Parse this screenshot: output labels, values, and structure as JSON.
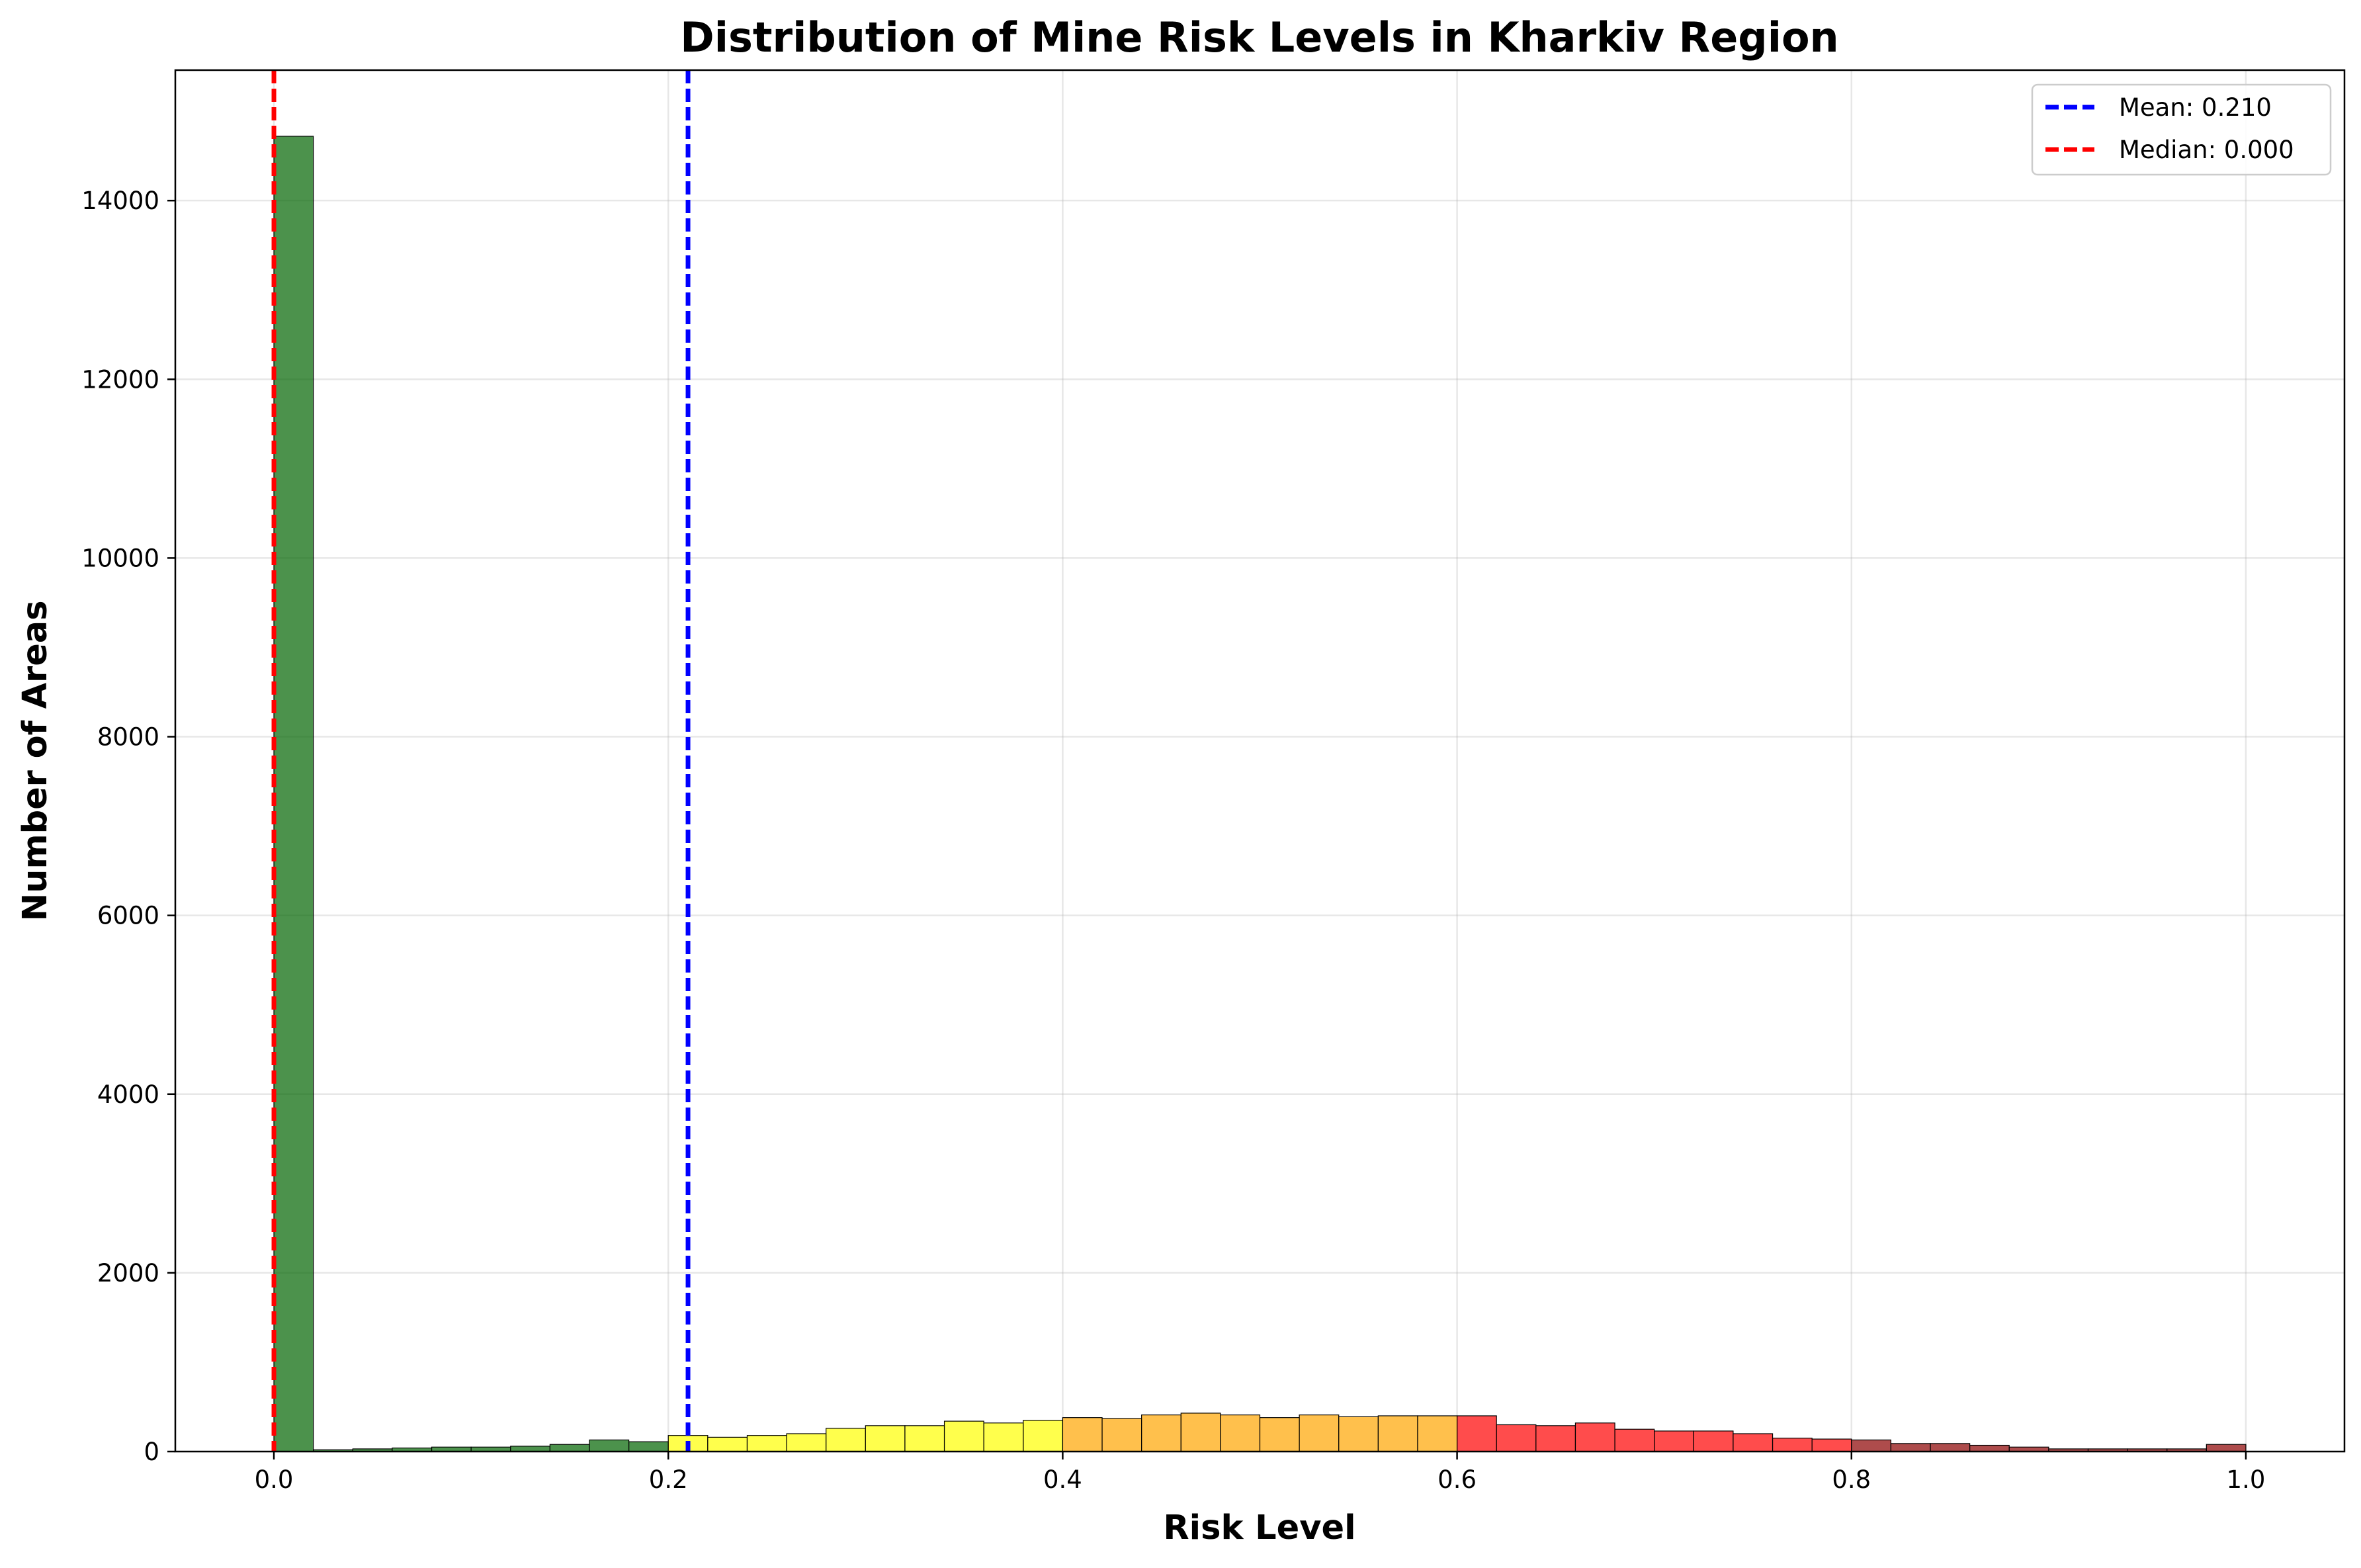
{
  "chart_data": {
    "type": "bar",
    "title": "Distribution of Mine Risk Levels in Kharkiv Region",
    "xlabel": "Risk Level",
    "ylabel": "Number of Areas",
    "xlim": [
      -0.05,
      1.05
    ],
    "ylim": [
      0,
      15460
    ],
    "xticks": [
      0.0,
      0.2,
      0.4,
      0.6,
      0.8,
      1.0
    ],
    "xtick_labels": [
      "0.0",
      "0.2",
      "0.4",
      "0.6",
      "0.8",
      "1.0"
    ],
    "yticks": [
      0,
      2000,
      4000,
      6000,
      8000,
      10000,
      12000,
      14000
    ],
    "ytick_labels": [
      "0",
      "2000",
      "4000",
      "6000",
      "8000",
      "10000",
      "12000",
      "14000"
    ],
    "grid": true,
    "legend_position": "top-right",
    "bin_width": 0.02,
    "bin_start": [
      0.0,
      0.02,
      0.04,
      0.06,
      0.08,
      0.1,
      0.12,
      0.14,
      0.16,
      0.18,
      0.2,
      0.22,
      0.24,
      0.26,
      0.28,
      0.3,
      0.32,
      0.34,
      0.36,
      0.38,
      0.4,
      0.42,
      0.44,
      0.46,
      0.48,
      0.5,
      0.52,
      0.54,
      0.56,
      0.58,
      0.6,
      0.62,
      0.64,
      0.66,
      0.68,
      0.7,
      0.72,
      0.74,
      0.76,
      0.78,
      0.8,
      0.82,
      0.84,
      0.86,
      0.88,
      0.9,
      0.92,
      0.94,
      0.96,
      0.98
    ],
    "values": [
      14720,
      20,
      30,
      40,
      50,
      50,
      60,
      80,
      130,
      110,
      180,
      160,
      180,
      200,
      260,
      290,
      290,
      340,
      320,
      350,
      380,
      370,
      410,
      430,
      410,
      380,
      410,
      390,
      400,
      400,
      400,
      300,
      290,
      320,
      250,
      230,
      230,
      200,
      150,
      140,
      130,
      90,
      90,
      70,
      50,
      30,
      30,
      30,
      30,
      80
    ],
    "bar_colors": [
      "#006400",
      "#006400",
      "#006400",
      "#006400",
      "#006400",
      "#006400",
      "#006400",
      "#006400",
      "#006400",
      "#006400",
      "#ffff00",
      "#ffff00",
      "#ffff00",
      "#ffff00",
      "#ffff00",
      "#ffff00",
      "#ffff00",
      "#ffff00",
      "#ffff00",
      "#ffff00",
      "#ffa500",
      "#ffa500",
      "#ffa500",
      "#ffa500",
      "#ffa500",
      "#ffa500",
      "#ffa500",
      "#ffa500",
      "#ffa500",
      "#ffa500",
      "#ff0000",
      "#ff0000",
      "#ff0000",
      "#ff0000",
      "#ff0000",
      "#ff0000",
      "#ff0000",
      "#ff0000",
      "#ff0000",
      "#ff0000",
      "#8b0000",
      "#8b0000",
      "#8b0000",
      "#8b0000",
      "#8b0000",
      "#8b0000",
      "#8b0000",
      "#8b0000",
      "#8b0000",
      "#8b0000"
    ],
    "bar_opacity": 0.7,
    "vlines": [
      {
        "label": "Mean: 0.210",
        "x": 0.21,
        "color": "#0000ff"
      },
      {
        "label": "Median: 0.000",
        "x": 0.0,
        "color": "#ff0000"
      }
    ]
  }
}
